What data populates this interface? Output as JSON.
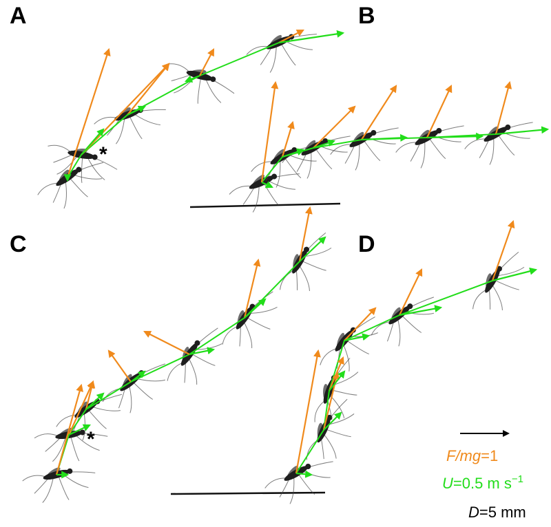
{
  "panels": [
    {
      "id": "A",
      "label": "A",
      "asterisk": "*"
    },
    {
      "id": "B",
      "label": "B"
    },
    {
      "id": "C",
      "label": "C",
      "asterisk": "*"
    },
    {
      "id": "D",
      "label": "D"
    }
  ],
  "legend": {
    "force_label_prefix": "F/mg",
    "force_label_value": "=1",
    "velocity_label_prefix": "U",
    "velocity_label_value": "=0.5 m s",
    "velocity_label_exponent": "−1",
    "distance_label_prefix": "D",
    "distance_label_value": "=5 mm"
  },
  "colors": {
    "force_vector": "#f08a1c",
    "velocity_vector": "#22dd1a",
    "scale_arrow": "#000000",
    "background": "#ffffff"
  }
}
